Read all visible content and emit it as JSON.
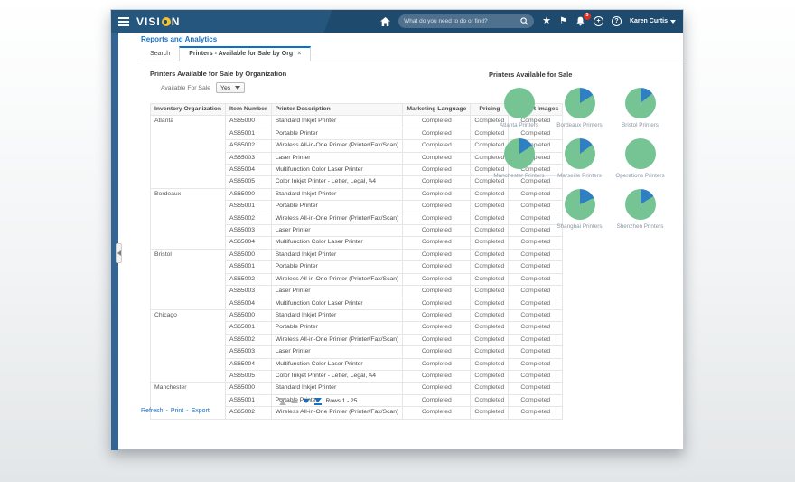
{
  "header": {
    "brand_prefix": "VISI",
    "brand_suffix": "N",
    "search_placeholder": "What do you need to do or find?",
    "notification_count": "5",
    "settings_glyph": "+",
    "help_glyph": "?",
    "user_name": "Karen Curtis"
  },
  "page": {
    "title": "Reports and Analytics",
    "tabs": [
      {
        "label": "Search"
      },
      {
        "label": "Printers - Available for Sale by Org",
        "close_glyph": "×"
      }
    ]
  },
  "report": {
    "title": "Printers Available for Sale by Organization",
    "filter": {
      "label": "Available For Sale",
      "value": "Yes"
    },
    "table": {
      "columns": [
        "Inventory Organization",
        "Item Number",
        "Printer Description",
        "Marketing Language",
        "Pricing",
        "Product Images"
      ],
      "groups": [
        {
          "org": "Atlanta",
          "rows": [
            [
              "AS65000",
              "Standard Inkjet Printer",
              "Completed",
              "Completed",
              "Completed"
            ],
            [
              "AS65001",
              "Portable Printer",
              "Completed",
              "Completed",
              "Completed"
            ],
            [
              "AS65002",
              "Wireless All-in-One Printer (Printer/Fax/Scan)",
              "Completed",
              "Completed",
              "Completed"
            ],
            [
              "AS65003",
              "Laser Printer",
              "Completed",
              "Completed",
              "Completed"
            ],
            [
              "AS65004",
              "Multifunction Color Laser Printer",
              "Completed",
              "Completed",
              "Completed"
            ],
            [
              "AS65005",
              "Color Inkjet Printer - Letter, Legal, A4",
              "Completed",
              "Completed",
              "Completed"
            ]
          ]
        },
        {
          "org": "Bordeaux",
          "rows": [
            [
              "AS65000",
              "Standard Inkjet Printer",
              "Completed",
              "Completed",
              "Completed"
            ],
            [
              "AS65001",
              "Portable Printer",
              "Completed",
              "Completed",
              "Completed"
            ],
            [
              "AS65002",
              "Wireless All-in-One Printer (Printer/Fax/Scan)",
              "Completed",
              "Completed",
              "Completed"
            ],
            [
              "AS65003",
              "Laser Printer",
              "Completed",
              "Completed",
              "Completed"
            ],
            [
              "AS65004",
              "Multifunction Color Laser Printer",
              "Completed",
              "Completed",
              "Completed"
            ]
          ]
        },
        {
          "org": "Bristol",
          "rows": [
            [
              "AS65000",
              "Standard Inkjet Printer",
              "Completed",
              "Completed",
              "Completed"
            ],
            [
              "AS65001",
              "Portable Printer",
              "Completed",
              "Completed",
              "Completed"
            ],
            [
              "AS65002",
              "Wireless All-in-One Printer (Printer/Fax/Scan)",
              "Completed",
              "Completed",
              "Completed"
            ],
            [
              "AS65003",
              "Laser Printer",
              "Completed",
              "Completed",
              "Completed"
            ],
            [
              "AS65004",
              "Multifunction Color Laser Printer",
              "Completed",
              "Completed",
              "Completed"
            ]
          ]
        },
        {
          "org": "Chicago",
          "rows": [
            [
              "AS65000",
              "Standard Inkjet Printer",
              "Completed",
              "Completed",
              "Completed"
            ],
            [
              "AS65001",
              "Portable Printer",
              "Completed",
              "Completed",
              "Completed"
            ],
            [
              "AS65002",
              "Wireless All-in-One Printer (Printer/Fax/Scan)",
              "Completed",
              "Completed",
              "Completed"
            ],
            [
              "AS65003",
              "Laser Printer",
              "Completed",
              "Completed",
              "Completed"
            ],
            [
              "AS65004",
              "Multifunction Color Laser Printer",
              "Completed",
              "Completed",
              "Completed"
            ],
            [
              "AS65005",
              "Color Inkjet Printer - Letter, Legal, A4",
              "Completed",
              "Completed",
              "Completed"
            ]
          ]
        },
        {
          "org": "Manchester",
          "rows": [
            [
              "AS65000",
              "Standard Inkjet Printer",
              "Completed",
              "Completed",
              "Completed"
            ],
            [
              "AS65001",
              "Portable Printer",
              "Completed",
              "Completed",
              "Completed"
            ],
            [
              "AS65002",
              "Wireless All-in-One Printer (Printer/Fax/Scan)",
              "Completed",
              "Completed",
              "Completed"
            ]
          ]
        }
      ]
    },
    "pagination_label": "Rows 1 - 25",
    "links": [
      "Refresh",
      "Print",
      "Export"
    ],
    "links_separator": "-"
  },
  "chart_data": {
    "type": "pie",
    "title": "Printers Available for Sale",
    "palette": {
      "green": "#76c493",
      "blue": "#2e80c0"
    },
    "legend_note": "green = available, blue slice = remainder",
    "charts": [
      {
        "label": "Atlanta Printers",
        "blue_pct": 0
      },
      {
        "label": "Bordeaux Printers",
        "blue_pct": 16
      },
      {
        "label": "Bristol Printers",
        "blue_pct": 14
      },
      {
        "label": "Manchester Printers",
        "blue_pct": 16
      },
      {
        "label": "Marseille Printers",
        "blue_pct": 15
      },
      {
        "label": "Operations Printers",
        "blue_pct": 0
      },
      {
        "label": "Shanghai Printers",
        "blue_pct": 18
      },
      {
        "label": "Shenzhen Printers",
        "blue_pct": 16
      }
    ],
    "layout": [
      [
        0,
        1,
        2
      ],
      [
        3,
        4,
        5
      ],
      [
        null,
        6,
        7
      ]
    ]
  }
}
